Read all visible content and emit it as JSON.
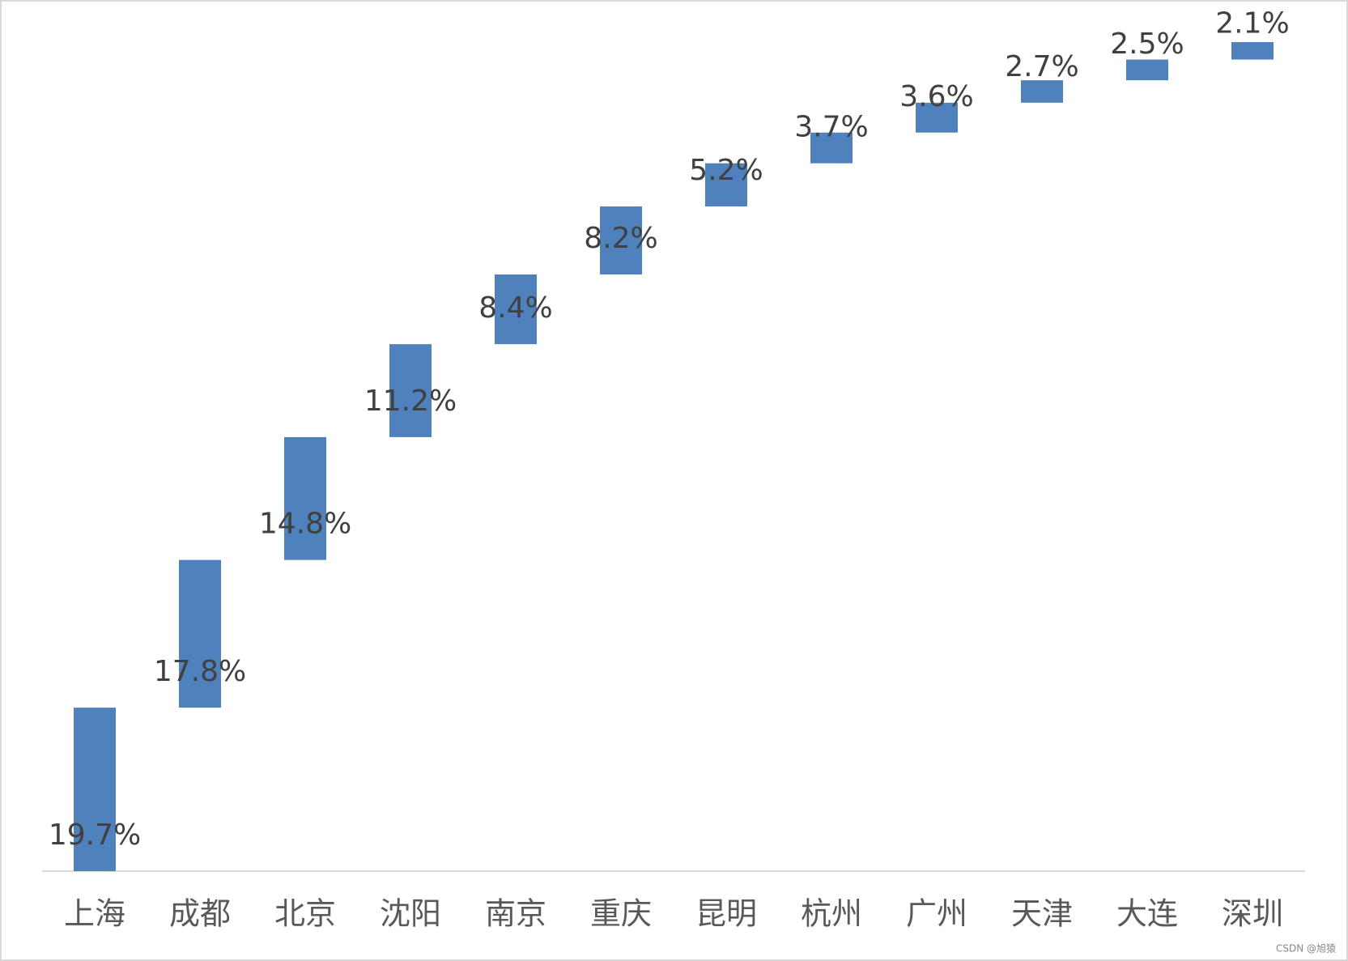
{
  "chart_data": {
    "type": "waterfall",
    "categories": [
      "上海",
      "成都",
      "北京",
      "沈阳",
      "南京",
      "重庆",
      "昆明",
      "杭州",
      "广州",
      "天津",
      "大连",
      "深圳"
    ],
    "values": [
      19.7,
      17.8,
      14.8,
      11.2,
      8.4,
      8.2,
      5.2,
      3.7,
      3.6,
      2.7,
      2.5,
      2.1
    ],
    "value_labels": [
      "19.7%",
      "17.8%",
      "14.8%",
      "11.2%",
      "8.4%",
      "8.2%",
      "5.2%",
      "3.7%",
      "3.6%",
      "2.7%",
      "2.5%",
      "2.1%"
    ],
    "color": "#4f81bd",
    "ylim": [
      0,
      100
    ]
  },
  "watermark": "CSDN @旭猿"
}
